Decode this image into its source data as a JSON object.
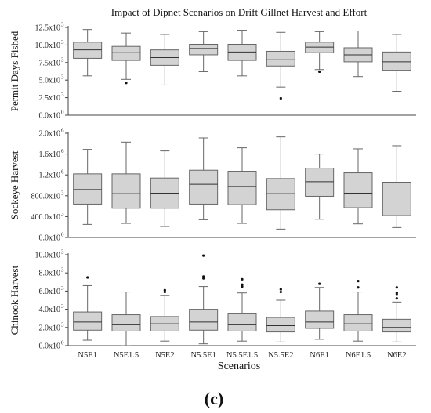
{
  "figure": {
    "title": "Impact of Dipnet Scenarios on Drift Gillnet Harvest and Effort",
    "xlabel": "Scenarios",
    "caption": "(c)"
  },
  "chart_data": [
    {
      "type": "box",
      "title": "Impact of Dipnet Scenarios on Drift Gillnet Harvest and Effort",
      "ylabel": "Permit Days Fished",
      "ylim": [
        0,
        12500
      ],
      "ticks": [
        {
          "v": 0,
          "label": "0.0x10",
          "exp": "0"
        },
        {
          "v": 2500,
          "label": "2.5x10",
          "exp": "3"
        },
        {
          "v": 5000,
          "label": "5.0x10",
          "exp": "3"
        },
        {
          "v": 7500,
          "label": "7.5x10",
          "exp": "3"
        },
        {
          "v": 10000,
          "label": "10.0x10",
          "exp": "3"
        },
        {
          "v": 12500,
          "label": "12.5x10",
          "exp": "3"
        }
      ],
      "categories": [
        "N5E1",
        "N5E1.5",
        "N5E2",
        "N5.5E1",
        "N5.5E1.5",
        "N5.5E2",
        "N6E1",
        "N6E1.5",
        "N6E2"
      ],
      "boxes": [
        {
          "min": 5600,
          "q1": 8100,
          "median": 9300,
          "q3": 10400,
          "max": 12200,
          "outliers": []
        },
        {
          "min": 5100,
          "q1": 7800,
          "median": 8900,
          "q3": 9800,
          "max": 11700,
          "outliers": [
            4600
          ]
        },
        {
          "min": 4300,
          "q1": 7100,
          "median": 8200,
          "q3": 9300,
          "max": 11500,
          "outliers": []
        },
        {
          "min": 6200,
          "q1": 8600,
          "median": 9500,
          "q3": 10100,
          "max": 11900,
          "outliers": []
        },
        {
          "min": 5600,
          "q1": 7800,
          "median": 9000,
          "q3": 10100,
          "max": 12100,
          "outliers": []
        },
        {
          "min": 4000,
          "q1": 7000,
          "median": 7900,
          "q3": 9100,
          "max": 11800,
          "outliers": [
            2400
          ]
        },
        {
          "min": 6500,
          "q1": 8900,
          "median": 9700,
          "q3": 10400,
          "max": 11900,
          "outliers": [
            6200
          ]
        },
        {
          "min": 5500,
          "q1": 7600,
          "median": 8600,
          "q3": 9600,
          "max": 12000,
          "outliers": []
        },
        {
          "min": 3400,
          "q1": 6400,
          "median": 7600,
          "q3": 9000,
          "max": 11500,
          "outliers": []
        }
      ]
    },
    {
      "type": "box",
      "ylabel": "Sockeye Harvest",
      "ylim": [
        0,
        2000000
      ],
      "ticks": [
        {
          "v": 0,
          "label": "0.0x10",
          "exp": "0"
        },
        {
          "v": 400000,
          "label": "400.0x10",
          "exp": "3"
        },
        {
          "v": 800000,
          "label": "800.0x10",
          "exp": "3"
        },
        {
          "v": 1200000,
          "label": "1.2x10",
          "exp": "6"
        },
        {
          "v": 1600000,
          "label": "1.6x10",
          "exp": "6"
        },
        {
          "v": 2000000,
          "label": "2.0x10",
          "exp": "6"
        }
      ],
      "categories": [
        "N5E1",
        "N5E1.5",
        "N5E2",
        "N5.5E1",
        "N5.5E1.5",
        "N5.5E2",
        "N6E1",
        "N6E1.5",
        "N6E2"
      ],
      "boxes": [
        {
          "min": 250000,
          "q1": 640000,
          "median": 920000,
          "q3": 1220000,
          "max": 1690000,
          "outliers": []
        },
        {
          "min": 270000,
          "q1": 560000,
          "median": 840000,
          "q3": 1220000,
          "max": 1830000,
          "outliers": []
        },
        {
          "min": 210000,
          "q1": 560000,
          "median": 850000,
          "q3": 1140000,
          "max": 1660000,
          "outliers": []
        },
        {
          "min": 340000,
          "q1": 640000,
          "median": 1020000,
          "q3": 1290000,
          "max": 1910000,
          "outliers": []
        },
        {
          "min": 270000,
          "q1": 630000,
          "median": 980000,
          "q3": 1270000,
          "max": 1720000,
          "outliers": []
        },
        {
          "min": 160000,
          "q1": 530000,
          "median": 840000,
          "q3": 1130000,
          "max": 1930000,
          "outliers": []
        },
        {
          "min": 350000,
          "q1": 790000,
          "median": 1070000,
          "q3": 1330000,
          "max": 1600000,
          "outliers": []
        },
        {
          "min": 260000,
          "q1": 570000,
          "median": 850000,
          "q3": 1240000,
          "max": 1700000,
          "outliers": []
        },
        {
          "min": 190000,
          "q1": 420000,
          "median": 700000,
          "q3": 1060000,
          "max": 1760000,
          "outliers": []
        }
      ]
    },
    {
      "type": "box",
      "ylabel": "Chinook Harvest",
      "xlabel": "Scenarios",
      "ylim": [
        0,
        10000
      ],
      "ticks": [
        {
          "v": 0,
          "label": "0.0x10",
          "exp": "0"
        },
        {
          "v": 2000,
          "label": "2.0x10",
          "exp": "3"
        },
        {
          "v": 4000,
          "label": "4.0x10",
          "exp": "3"
        },
        {
          "v": 6000,
          "label": "6.0x10",
          "exp": "3"
        },
        {
          "v": 8000,
          "label": "8.0x10",
          "exp": "3"
        },
        {
          "v": 10000,
          "label": "10.0x10",
          "exp": "3"
        }
      ],
      "categories": [
        "N5E1",
        "N5E1.5",
        "N5E2",
        "N5.5E1",
        "N5.5E1.5",
        "N5.5E2",
        "N6E1",
        "N6E1.5",
        "N6E2"
      ],
      "boxes": [
        {
          "min": 600,
          "q1": 1700,
          "median": 2600,
          "q3": 3700,
          "max": 6600,
          "outliers": [
            7500
          ]
        },
        {
          "min": 0,
          "q1": 1600,
          "median": 2300,
          "q3": 3400,
          "max": 5900,
          "outliers": []
        },
        {
          "min": 500,
          "q1": 1600,
          "median": 2400,
          "q3": 3200,
          "max": 5500,
          "outliers": [
            5900,
            6100
          ]
        },
        {
          "min": 200,
          "q1": 1700,
          "median": 2600,
          "q3": 4000,
          "max": 6500,
          "outliers": [
            7400,
            7600,
            9900
          ]
        },
        {
          "min": 500,
          "q1": 1600,
          "median": 2300,
          "q3": 3500,
          "max": 5800,
          "outliers": [
            6500,
            6700,
            7300
          ]
        },
        {
          "min": 400,
          "q1": 1500,
          "median": 2200,
          "q3": 3100,
          "max": 5000,
          "outliers": [
            5900,
            6200
          ]
        },
        {
          "min": 700,
          "q1": 1900,
          "median": 2600,
          "q3": 3800,
          "max": 6400,
          "outliers": [
            6800
          ]
        },
        {
          "min": 500,
          "q1": 1600,
          "median": 2400,
          "q3": 3400,
          "max": 5900,
          "outliers": [
            6400,
            7100
          ]
        },
        {
          "min": 400,
          "q1": 1500,
          "median": 2000,
          "q3": 2900,
          "max": 4800,
          "outliers": [
            5200,
            5600,
            5800,
            6400
          ]
        }
      ]
    }
  ]
}
